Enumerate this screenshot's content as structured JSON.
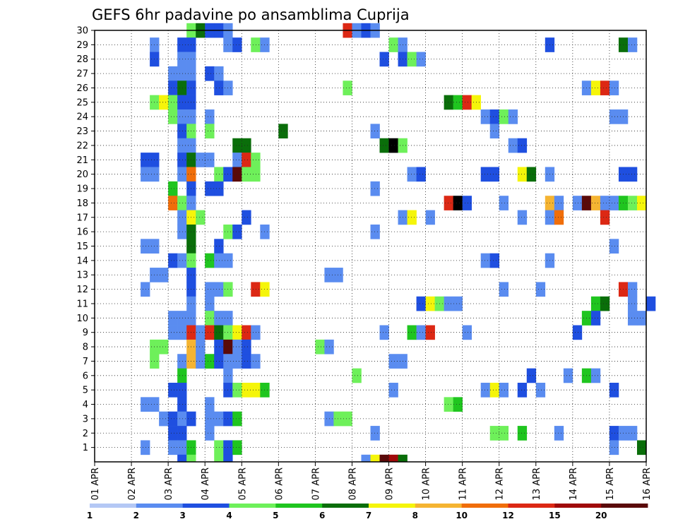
{
  "chart_data": {
    "type": "heatmap",
    "title": "GEFS 6hr padavine po ansamblima Cuprija",
    "xlabel": "",
    "ylabel": "",
    "x_ticks": [
      "01 APR",
      "02 APR",
      "03 APR",
      "04 APR",
      "05 APR",
      "06 APR",
      "07 APR",
      "08 APR",
      "09 APR",
      "10 APR",
      "11 APR",
      "12 APR",
      "13 APR",
      "14 APR",
      "15 APR",
      "16 APR"
    ],
    "x_range": [
      "01 APR 00Z",
      "16 APR 00Z"
    ],
    "x_step": "6hr",
    "y_ticks": [
      1,
      2,
      3,
      4,
      5,
      6,
      7,
      8,
      9,
      10,
      11,
      12,
      13,
      14,
      15,
      16,
      17,
      18,
      19,
      20,
      21,
      22,
      23,
      24,
      25,
      26,
      27,
      28,
      29,
      30
    ],
    "ylim": [
      0,
      30
    ],
    "grid": true,
    "colorbar": {
      "levels": [
        1,
        2,
        3,
        4,
        5,
        6,
        7,
        8,
        10,
        12,
        15,
        20
      ],
      "colors": [
        "#b4c8f5",
        "#5a8cf0",
        "#1f4fe0",
        "#6ef05a",
        "#1fc51f",
        "#0a6e0a",
        "#f5f50a",
        "#f5b432",
        "#f06e0a",
        "#dc2814",
        "#a00a0a",
        "#5a0a0a"
      ]
    },
    "cells": [
      [
        30,
        10,
        3
      ],
      [
        30,
        11,
        5
      ],
      [
        30,
        12,
        2
      ],
      [
        30,
        13,
        2
      ],
      [
        30,
        14,
        1
      ],
      [
        30,
        27,
        9
      ],
      [
        30,
        28,
        1
      ],
      [
        30,
        29,
        2
      ],
      [
        30,
        30,
        1
      ],
      [
        29,
        6,
        1
      ],
      [
        29,
        9,
        2
      ],
      [
        29,
        10,
        2
      ],
      [
        29,
        14,
        1
      ],
      [
        29,
        15,
        2
      ],
      [
        29,
        17,
        3
      ],
      [
        29,
        18,
        1
      ],
      [
        29,
        32,
        3
      ],
      [
        29,
        33,
        1
      ],
      [
        29,
        49,
        2
      ],
      [
        29,
        57,
        5
      ],
      [
        29,
        58,
        1
      ],
      [
        28,
        6,
        2
      ],
      [
        28,
        9,
        1
      ],
      [
        28,
        10,
        1
      ],
      [
        28,
        31,
        2
      ],
      [
        28,
        33,
        2
      ],
      [
        28,
        34,
        3
      ],
      [
        28,
        35,
        1
      ],
      [
        27,
        8,
        1
      ],
      [
        27,
        9,
        1
      ],
      [
        27,
        10,
        1
      ],
      [
        27,
        12,
        2
      ],
      [
        27,
        13,
        1
      ],
      [
        26,
        8,
        2
      ],
      [
        26,
        9,
        5
      ],
      [
        26,
        10,
        2
      ],
      [
        26,
        13,
        2
      ],
      [
        26,
        14,
        1
      ],
      [
        26,
        27,
        3
      ],
      [
        26,
        53,
        1
      ],
      [
        26,
        54,
        6
      ],
      [
        26,
        55,
        9
      ],
      [
        26,
        56,
        1
      ],
      [
        25,
        6,
        3
      ],
      [
        25,
        7,
        6
      ],
      [
        25,
        8,
        3
      ],
      [
        25,
        9,
        2
      ],
      [
        25,
        10,
        2
      ],
      [
        25,
        38,
        5
      ],
      [
        25,
        39,
        4
      ],
      [
        25,
        40,
        9
      ],
      [
        25,
        41,
        6
      ],
      [
        24,
        8,
        3
      ],
      [
        24,
        9,
        1
      ],
      [
        24,
        10,
        1
      ],
      [
        24,
        12,
        1
      ],
      [
        24,
        42,
        1
      ],
      [
        24,
        43,
        2
      ],
      [
        24,
        44,
        3
      ],
      [
        24,
        45,
        1
      ],
      [
        24,
        56,
        1
      ],
      [
        24,
        57,
        1
      ],
      [
        23,
        9,
        2
      ],
      [
        23,
        10,
        3
      ],
      [
        23,
        12,
        3
      ],
      [
        23,
        20,
        5
      ],
      [
        23,
        30,
        1
      ],
      [
        23,
        43,
        1
      ],
      [
        22,
        9,
        1
      ],
      [
        22,
        10,
        1
      ],
      [
        22,
        15,
        5
      ],
      [
        22,
        16,
        5
      ],
      [
        22,
        31,
        5
      ],
      [
        22,
        32,
        12
      ],
      [
        22,
        33,
        3
      ],
      [
        22,
        45,
        1
      ],
      [
        22,
        46,
        2
      ],
      [
        21,
        5,
        2
      ],
      [
        21,
        6,
        2
      ],
      [
        21,
        9,
        2
      ],
      [
        21,
        10,
        5
      ],
      [
        21,
        11,
        1
      ],
      [
        21,
        12,
        1
      ],
      [
        21,
        15,
        1
      ],
      [
        21,
        16,
        9
      ],
      [
        21,
        17,
        3
      ],
      [
        20,
        5,
        1
      ],
      [
        20,
        6,
        1
      ],
      [
        20,
        9,
        1
      ],
      [
        20,
        10,
        8
      ],
      [
        20,
        13,
        3
      ],
      [
        20,
        14,
        2
      ],
      [
        20,
        15,
        11
      ],
      [
        20,
        16,
        3
      ],
      [
        20,
        17,
        3
      ],
      [
        20,
        34,
        1
      ],
      [
        20,
        35,
        2
      ],
      [
        20,
        42,
        2
      ],
      [
        20,
        43,
        2
      ],
      [
        20,
        46,
        6
      ],
      [
        20,
        47,
        5
      ],
      [
        20,
        49,
        1
      ],
      [
        20,
        57,
        2
      ],
      [
        20,
        58,
        2
      ],
      [
        19,
        8,
        4
      ],
      [
        19,
        10,
        2
      ],
      [
        19,
        12,
        2
      ],
      [
        19,
        13,
        2
      ],
      [
        19,
        30,
        1
      ],
      [
        18,
        8,
        8
      ],
      [
        18,
        9,
        3
      ],
      [
        18,
        10,
        1
      ],
      [
        18,
        38,
        9
      ],
      [
        18,
        39,
        12
      ],
      [
        18,
        40,
        2
      ],
      [
        18,
        44,
        1
      ],
      [
        18,
        49,
        7
      ],
      [
        18,
        50,
        1
      ],
      [
        18,
        52,
        1
      ],
      [
        18,
        53,
        11
      ],
      [
        18,
        54,
        7
      ],
      [
        18,
        55,
        1
      ],
      [
        18,
        56,
        1
      ],
      [
        18,
        57,
        4
      ],
      [
        18,
        58,
        3
      ],
      [
        18,
        59,
        6
      ],
      [
        17,
        9,
        1
      ],
      [
        17,
        10,
        6
      ],
      [
        17,
        11,
        3
      ],
      [
        17,
        16,
        2
      ],
      [
        17,
        33,
        1
      ],
      [
        17,
        34,
        6
      ],
      [
        17,
        36,
        1
      ],
      [
        17,
        46,
        1
      ],
      [
        17,
        49,
        1
      ],
      [
        17,
        50,
        8
      ],
      [
        17,
        55,
        9
      ],
      [
        16,
        9,
        1
      ],
      [
        16,
        10,
        5
      ],
      [
        16,
        14,
        3
      ],
      [
        16,
        15,
        2
      ],
      [
        16,
        18,
        1
      ],
      [
        16,
        30,
        1
      ],
      [
        15,
        5,
        1
      ],
      [
        15,
        6,
        1
      ],
      [
        15,
        10,
        5
      ],
      [
        15,
        13,
        2
      ],
      [
        15,
        56,
        1
      ],
      [
        14,
        8,
        2
      ],
      [
        14,
        9,
        1
      ],
      [
        14,
        10,
        3
      ],
      [
        14,
        12,
        4
      ],
      [
        14,
        13,
        1
      ],
      [
        14,
        14,
        1
      ],
      [
        14,
        42,
        1
      ],
      [
        14,
        43,
        2
      ],
      [
        14,
        49,
        1
      ],
      [
        13,
        6,
        1
      ],
      [
        13,
        7,
        1
      ],
      [
        13,
        10,
        2
      ],
      [
        13,
        25,
        1
      ],
      [
        13,
        26,
        1
      ],
      [
        12,
        5,
        1
      ],
      [
        12,
        10,
        2
      ],
      [
        12,
        12,
        1
      ],
      [
        12,
        13,
        1
      ],
      [
        12,
        14,
        3
      ],
      [
        12,
        17,
        9
      ],
      [
        12,
        18,
        6
      ],
      [
        12,
        44,
        1
      ],
      [
        12,
        48,
        1
      ],
      [
        12,
        57,
        9
      ],
      [
        12,
        58,
        1
      ],
      [
        11,
        10,
        1
      ],
      [
        11,
        12,
        1
      ],
      [
        11,
        35,
        2
      ],
      [
        11,
        36,
        6
      ],
      [
        11,
        37,
        3
      ],
      [
        11,
        38,
        1
      ],
      [
        11,
        39,
        1
      ],
      [
        11,
        54,
        4
      ],
      [
        11,
        55,
        5
      ],
      [
        11,
        58,
        1
      ],
      [
        11,
        60,
        2
      ],
      [
        10,
        8,
        1
      ],
      [
        10,
        9,
        1
      ],
      [
        10,
        10,
        1
      ],
      [
        10,
        12,
        3
      ],
      [
        10,
        13,
        1
      ],
      [
        10,
        14,
        1
      ],
      [
        10,
        53,
        4
      ],
      [
        10,
        54,
        2
      ],
      [
        10,
        58,
        1
      ],
      [
        10,
        59,
        1
      ],
      [
        9,
        8,
        1
      ],
      [
        9,
        9,
        1
      ],
      [
        9,
        10,
        9
      ],
      [
        9,
        11,
        1
      ],
      [
        9,
        12,
        9
      ],
      [
        9,
        13,
        5
      ],
      [
        9,
        14,
        3
      ],
      [
        9,
        15,
        6
      ],
      [
        9,
        16,
        9
      ],
      [
        9,
        17,
        1
      ],
      [
        9,
        31,
        1
      ],
      [
        9,
        34,
        4
      ],
      [
        9,
        35,
        1
      ],
      [
        9,
        36,
        9
      ],
      [
        9,
        40,
        1
      ],
      [
        9,
        52,
        2
      ],
      [
        8,
        6,
        3
      ],
      [
        8,
        7,
        3
      ],
      [
        8,
        10,
        7
      ],
      [
        8,
        11,
        1
      ],
      [
        8,
        13,
        2
      ],
      [
        8,
        14,
        11
      ],
      [
        8,
        15,
        1
      ],
      [
        8,
        16,
        2
      ],
      [
        8,
        24,
        3
      ],
      [
        8,
        25,
        1
      ],
      [
        7,
        6,
        3
      ],
      [
        7,
        9,
        1
      ],
      [
        7,
        10,
        7
      ],
      [
        7,
        11,
        1
      ],
      [
        7,
        12,
        4
      ],
      [
        7,
        13,
        2
      ],
      [
        7,
        14,
        1
      ],
      [
        7,
        15,
        1
      ],
      [
        7,
        16,
        2
      ],
      [
        7,
        17,
        1
      ],
      [
        7,
        32,
        1
      ],
      [
        7,
        33,
        1
      ],
      [
        6,
        9,
        4
      ],
      [
        6,
        14,
        1
      ],
      [
        6,
        28,
        3
      ],
      [
        6,
        47,
        2
      ],
      [
        6,
        51,
        1
      ],
      [
        6,
        53,
        4
      ],
      [
        6,
        54,
        1
      ],
      [
        5,
        8,
        2
      ],
      [
        5,
        9,
        2
      ],
      [
        5,
        14,
        2
      ],
      [
        5,
        15,
        3
      ],
      [
        5,
        16,
        6
      ],
      [
        5,
        17,
        6
      ],
      [
        5,
        18,
        4
      ],
      [
        5,
        32,
        1
      ],
      [
        5,
        42,
        1
      ],
      [
        5,
        43,
        6
      ],
      [
        5,
        44,
        1
      ],
      [
        5,
        46,
        2
      ],
      [
        5,
        48,
        1
      ],
      [
        5,
        56,
        2
      ],
      [
        4,
        5,
        1
      ],
      [
        4,
        6,
        1
      ],
      [
        4,
        9,
        2
      ],
      [
        4,
        12,
        1
      ],
      [
        4,
        38,
        3
      ],
      [
        4,
        39,
        4
      ],
      [
        3,
        7,
        1
      ],
      [
        3,
        8,
        2
      ],
      [
        3,
        9,
        1
      ],
      [
        3,
        10,
        2
      ],
      [
        3,
        12,
        1
      ],
      [
        3,
        13,
        1
      ],
      [
        3,
        14,
        2
      ],
      [
        3,
        15,
        4
      ],
      [
        3,
        25,
        1
      ],
      [
        3,
        26,
        3
      ],
      [
        3,
        27,
        3
      ],
      [
        2,
        8,
        2
      ],
      [
        2,
        9,
        2
      ],
      [
        2,
        12,
        1
      ],
      [
        2,
        30,
        1
      ],
      [
        2,
        43,
        3
      ],
      [
        2,
        44,
        3
      ],
      [
        2,
        46,
        4
      ],
      [
        2,
        50,
        1
      ],
      [
        2,
        56,
        2
      ],
      [
        2,
        57,
        1
      ],
      [
        2,
        58,
        1
      ],
      [
        1,
        5,
        1
      ],
      [
        1,
        8,
        1
      ],
      [
        1,
        9,
        1
      ],
      [
        1,
        10,
        4
      ],
      [
        1,
        13,
        3
      ],
      [
        1,
        14,
        2
      ],
      [
        1,
        15,
        4
      ],
      [
        1,
        56,
        1
      ],
      [
        1,
        59,
        5
      ],
      [
        0,
        9,
        2
      ],
      [
        0,
        10,
        3
      ],
      [
        0,
        13,
        3
      ],
      [
        0,
        14,
        2
      ],
      [
        0,
        29,
        1
      ],
      [
        0,
        30,
        6
      ],
      [
        0,
        31,
        11
      ],
      [
        0,
        32,
        10
      ],
      [
        0,
        33,
        5
      ]
    ]
  }
}
